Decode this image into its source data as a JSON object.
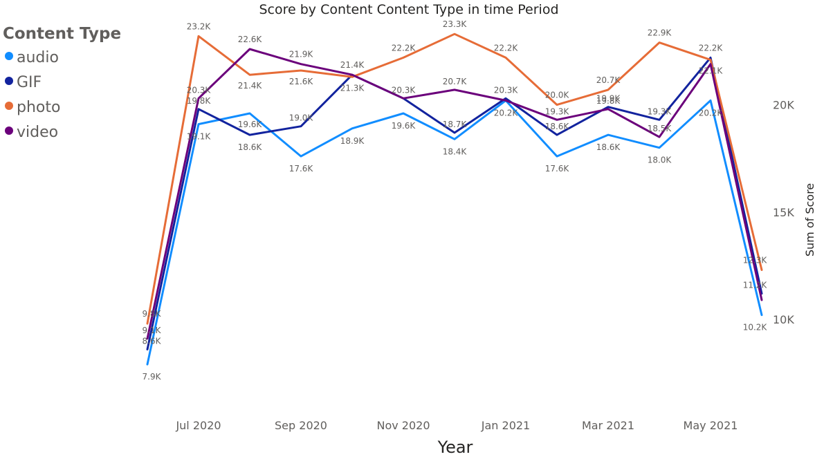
{
  "chart_data": {
    "type": "line",
    "title": "Score by Content Content Type in time Period",
    "xlabel": "Year",
    "ylabel": "Sum of Score",
    "legend": {
      "title": "Content Type",
      "placement": "top-left"
    },
    "x": [
      "2020-06",
      "2020-07",
      "2020-08",
      "2020-09",
      "2020-10",
      "2020-11",
      "2020-12",
      "2021-01",
      "2021-02",
      "2021-03",
      "2021-04",
      "2021-05",
      "2021-06"
    ],
    "x_ticks": [
      {
        "x": "2020-07",
        "label": "Jul 2020"
      },
      {
        "x": "2020-09",
        "label": "Sep 2020"
      },
      {
        "x": "2020-11",
        "label": "Nov 2020"
      },
      {
        "x": "2021-01",
        "label": "Jan 2021"
      },
      {
        "x": "2021-03",
        "label": "Mar 2021"
      },
      {
        "x": "2021-05",
        "label": "May 2021"
      }
    ],
    "y_ticks": [
      {
        "value": 10000,
        "label": "10K"
      },
      {
        "value": 15000,
        "label": "15K"
      },
      {
        "value": 20000,
        "label": "20K"
      }
    ],
    "ylim": [
      7000,
      24500
    ],
    "y_axis_side": "right",
    "grid": false,
    "series": [
      {
        "name": "audio",
        "color": "#118DFF",
        "values": [
          7900,
          19100,
          19600,
          17600,
          18900,
          19600,
          18400,
          20200,
          17600,
          18600,
          18000,
          20200,
          10200
        ],
        "labels": [
          "7.9K",
          "19.1K",
          "19.6K",
          "17.6K",
          "18.9K",
          "19.6K",
          "18.4K",
          "20.2K",
          "17.6K",
          "18.6K",
          "18.0K",
          "20.2K",
          "10.2K"
        ]
      },
      {
        "name": "GIF",
        "color": "#12239E",
        "values": [
          8600,
          19800,
          18600,
          19000,
          21400,
          20300,
          18700,
          20300,
          18600,
          19900,
          19300,
          22200,
          11200
        ],
        "labels": [
          "8.6K",
          "19.8K",
          "18.6K",
          "19.0K",
          "21.4K",
          "20.3K",
          "18.7K",
          "20.3K",
          "18.6K",
          "19.9K",
          "19.3K",
          "22.2K",
          "11.2K"
        ]
      },
      {
        "name": "photo",
        "color": "#E66C37",
        "values": [
          9800,
          23200,
          21400,
          21600,
          21300,
          22200,
          23300,
          22200,
          20000,
          20700,
          22900,
          22100,
          12300
        ],
        "labels": [
          "9.8K",
          "23.2K",
          "21.4K",
          "21.6K",
          "21.3K",
          "22.2K",
          "23.3K",
          "22.2K",
          "20.0K",
          "20.7K",
          "22.9K",
          "22.1K",
          "12.3K"
        ]
      },
      {
        "name": "video",
        "color": "#6B007B",
        "values": [
          9100,
          20300,
          22600,
          21900,
          21400,
          20300,
          20700,
          20200,
          19300,
          19800,
          18500,
          21900,
          10900
        ],
        "labels": [
          "9.1K",
          "20.3K",
          "22.6K",
          "21.9K",
          "",
          "",
          "20.7K",
          "",
          "19.3K",
          "19.8K",
          "18.5K",
          "",
          ""
        ]
      }
    ]
  }
}
